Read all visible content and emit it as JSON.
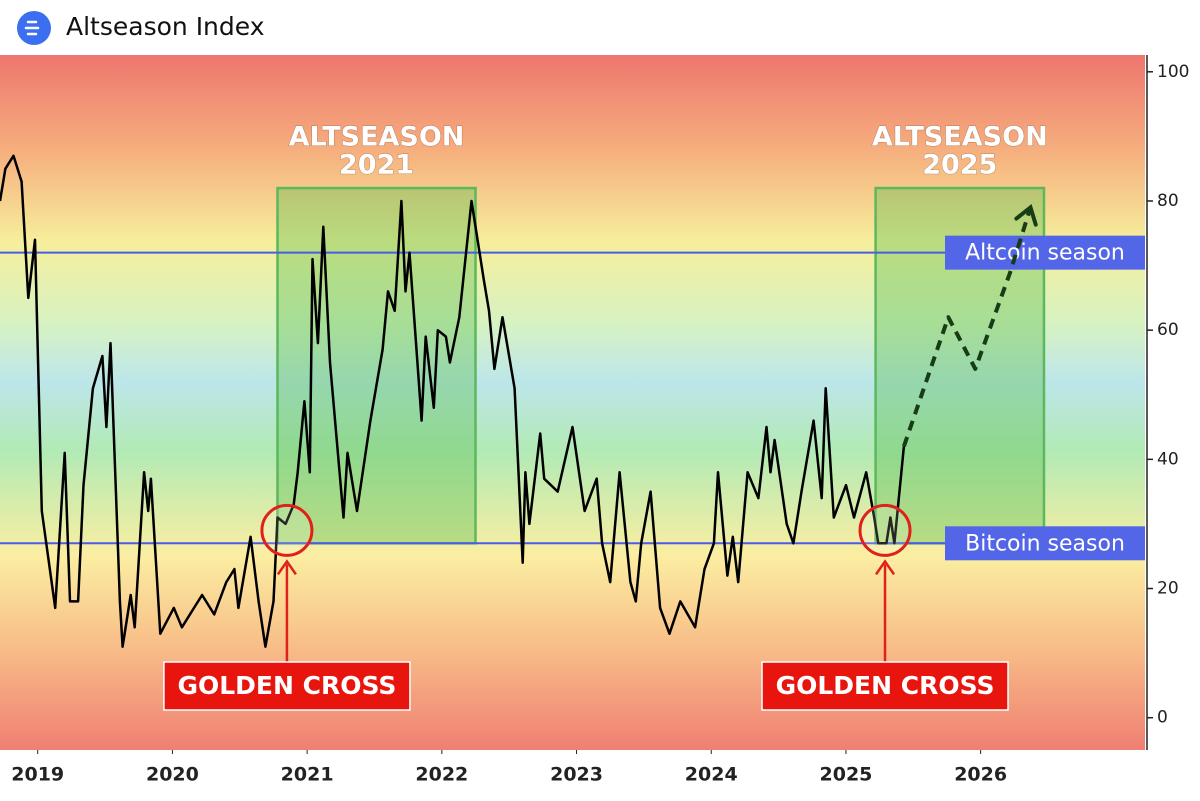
{
  "chart_data": {
    "type": "line",
    "title": "Altseason Index",
    "xlim": [
      2018.72,
      2027.22
    ],
    "xticks": [
      2019,
      2020,
      2021,
      2022,
      2023,
      2024,
      2025,
      2026
    ],
    "ylim": [
      -5,
      102.6
    ],
    "yticks": [
      0,
      20,
      40,
      60,
      80,
      100
    ],
    "series": [
      {
        "color": "#000000",
        "dashed": false,
        "x": [
          2018.72,
          2018.76,
          2018.82,
          2018.88,
          2018.93,
          2018.98,
          2019.03,
          2019.13,
          2019.2,
          2019.24,
          2019.3,
          2019.34,
          2019.41,
          2019.48,
          2019.51,
          2019.54,
          2019.61,
          2019.63,
          2019.69,
          2019.72,
          2019.79,
          2019.82,
          2019.84,
          2019.91,
          2020.01,
          2020.07,
          2020.16,
          2020.22,
          2020.31,
          2020.4,
          2020.46,
          2020.49,
          2020.58,
          2020.64,
          2020.69,
          2020.75,
          2020.78,
          2020.84,
          2020.9,
          2020.93,
          2020.98,
          2021.02,
          2021.04,
          2021.08,
          2021.12,
          2021.17,
          2021.27,
          2021.3,
          2021.37,
          2021.47,
          2021.56,
          2021.6,
          2021.65,
          2021.7,
          2021.73,
          2021.76,
          2021.85,
          2021.88,
          2021.94,
          2021.97,
          2022.03,
          2022.06,
          2022.13,
          2022.22,
          2022.31,
          2022.35,
          2022.39,
          2022.45,
          2022.54,
          2022.6,
          2022.62,
          2022.65,
          2022.73,
          2022.76,
          2022.86,
          2022.97,
          2023.06,
          2023.15,
          2023.19,
          2023.25,
          2023.32,
          2023.4,
          2023.44,
          2023.48,
          2023.55,
          2023.62,
          2023.69,
          2023.77,
          2023.88,
          2023.95,
          2024.02,
          2024.05,
          2024.12,
          2024.16,
          2024.2,
          2024.27,
          2024.35,
          2024.41,
          2024.44,
          2024.47,
          2024.56,
          2024.61,
          2024.67,
          2024.76,
          2024.82,
          2024.85,
          2024.91,
          2025.0,
          2025.06,
          2025.15,
          2025.21,
          2025.24,
          2025.3,
          2025.33,
          2025.36,
          2025.43
        ],
        "values": [
          80,
          85,
          87,
          83,
          65,
          74,
          32,
          17,
          41,
          18,
          18,
          36,
          51,
          56,
          45,
          58,
          18,
          11,
          19,
          14,
          38,
          32,
          37,
          13,
          17,
          14,
          17,
          19,
          16,
          21,
          23,
          17,
          28,
          18,
          11,
          18,
          31,
          30,
          33,
          38,
          49,
          38,
          71,
          58,
          76,
          55,
          31,
          41,
          32,
          46,
          57,
          66,
          63,
          80,
          66,
          72,
          46,
          59,
          48,
          60,
          59,
          55,
          62,
          80,
          68,
          63,
          54,
          62,
          51,
          24,
          38,
          30,
          44,
          37,
          35,
          45,
          32,
          37,
          27,
          21,
          38,
          21,
          18,
          27,
          35,
          17,
          13,
          18,
          14,
          23,
          27,
          38,
          22,
          28,
          21,
          38,
          34,
          45,
          38,
          43,
          30,
          27,
          35,
          46,
          34,
          51,
          31,
          36,
          31,
          38,
          31,
          27,
          27,
          31,
          27,
          42
        ]
      },
      {
        "color": "#163d16",
        "dashed": true,
        "x": [
          2025.43,
          2025.76,
          2025.96,
          2026.22,
          2026.37
        ],
        "values": [
          42,
          62,
          54,
          69,
          79
        ]
      }
    ],
    "reference_lines": [
      {
        "label": "Altcoin season",
        "value": 72
      },
      {
        "label": "Bitcoin season",
        "value": 27
      }
    ],
    "regions": [
      {
        "label_lines": [
          "ALTSEASON",
          "2021"
        ],
        "x": [
          2020.78,
          2022.25
        ],
        "y": [
          27,
          82
        ]
      },
      {
        "label_lines": [
          "ALTSEASON",
          "2025"
        ],
        "x": [
          2025.22,
          2026.47
        ],
        "y": [
          27,
          82
        ]
      }
    ],
    "annotations": [
      {
        "text": "GOLDEN CROSS",
        "x": 2020.85,
        "y": 29
      },
      {
        "text": "GOLDEN CROSS",
        "x": 2025.29,
        "y": 29
      }
    ]
  }
}
